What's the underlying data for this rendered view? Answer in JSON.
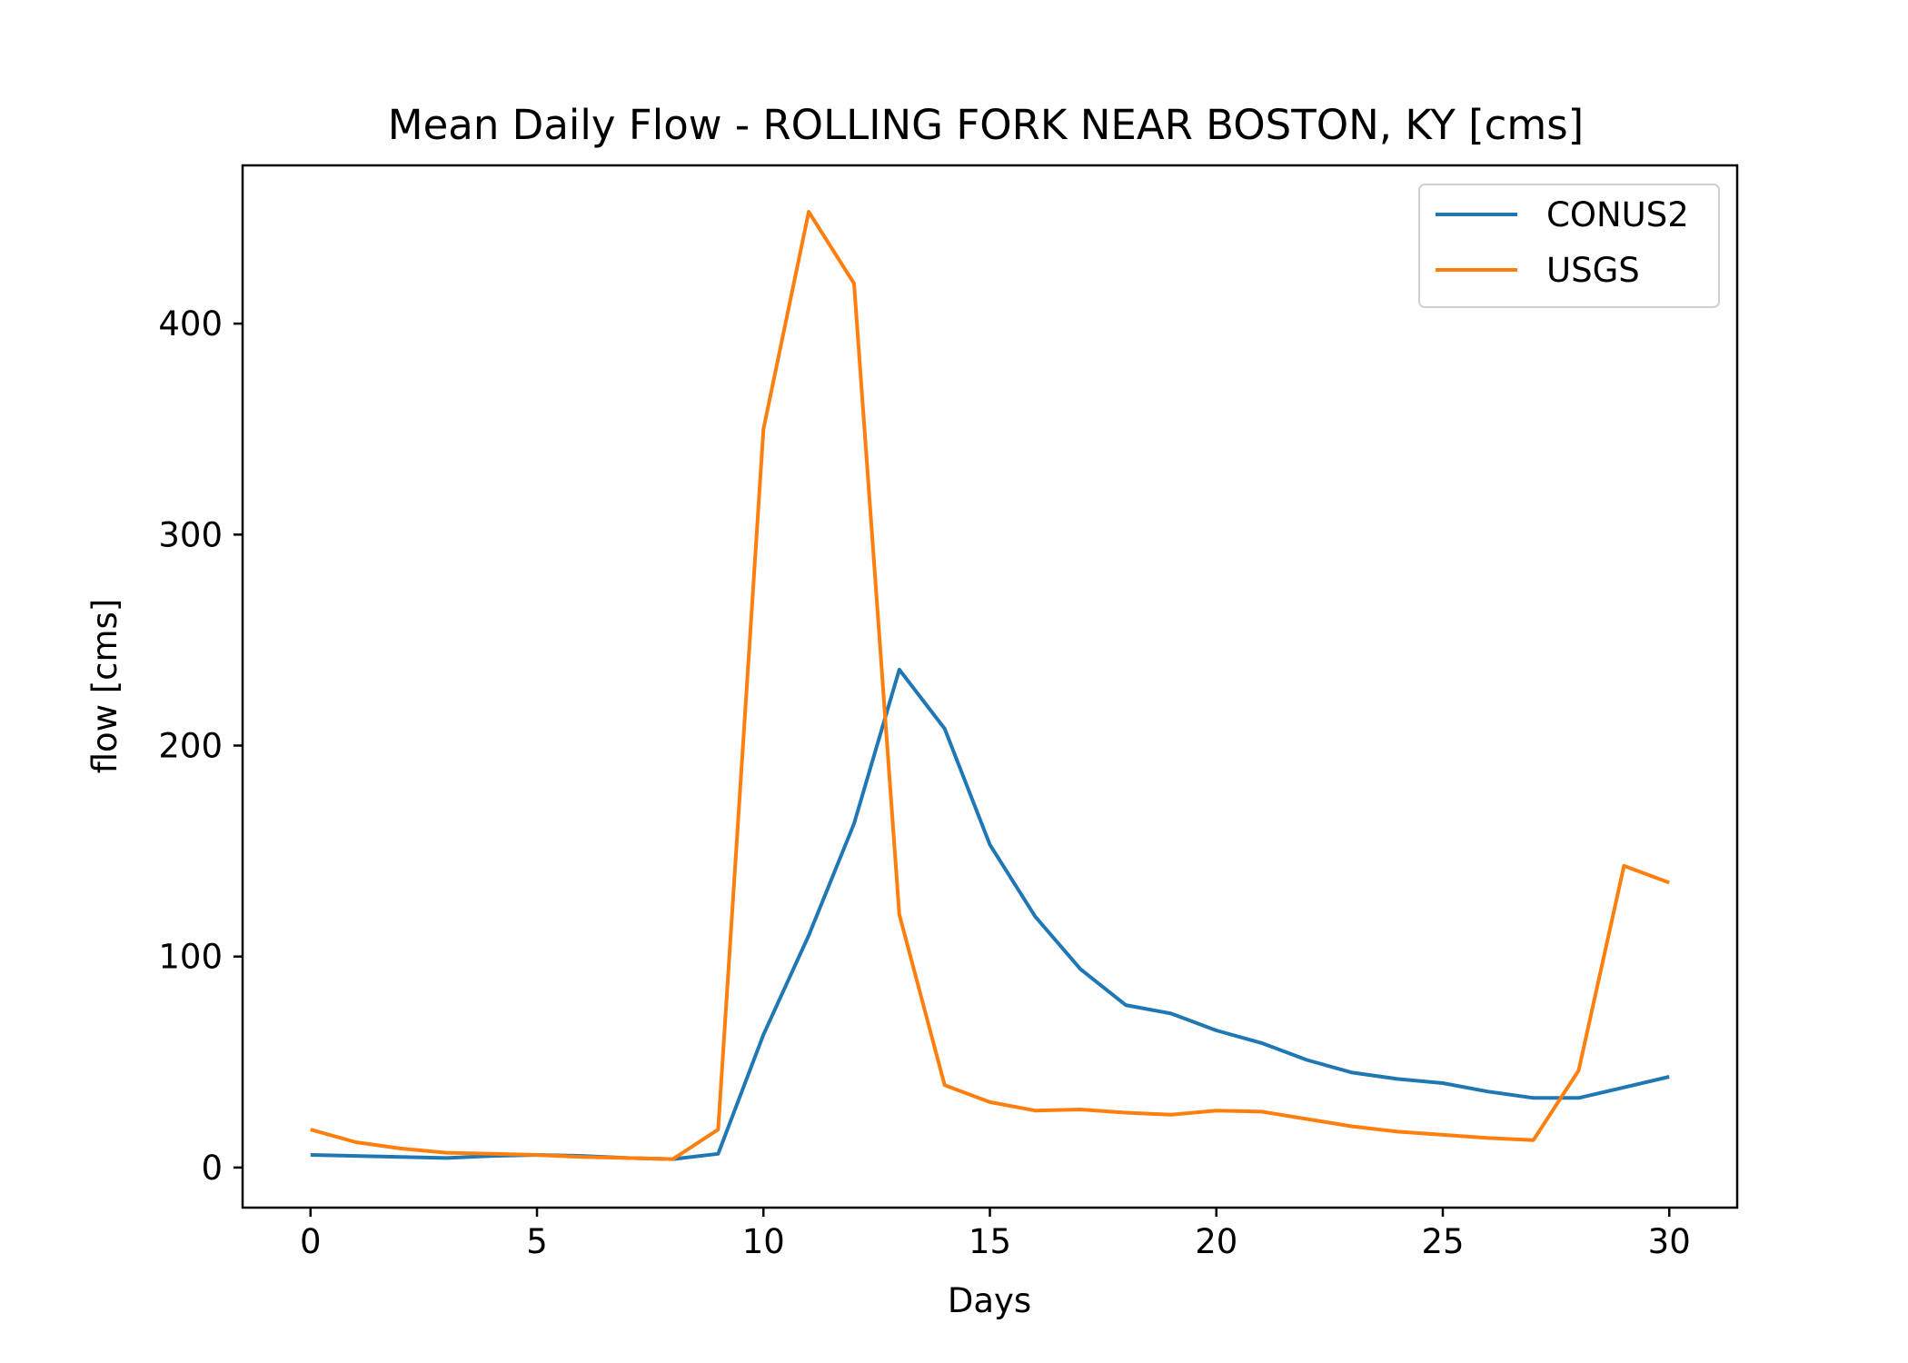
{
  "chart_data": {
    "type": "line",
    "title": "Mean Daily Flow - ROLLING FORK NEAR BOSTON, KY [cms]",
    "xlabel": "Days",
    "ylabel": "flow [cms]",
    "xlim": [
      -1.5,
      31.5
    ],
    "ylim": [
      -19,
      475
    ],
    "xticks": [
      0,
      5,
      10,
      15,
      20,
      25,
      30
    ],
    "yticks": [
      0,
      100,
      200,
      300,
      400
    ],
    "grid": false,
    "legend_position": "top-right",
    "x": [
      0,
      1,
      2,
      3,
      4,
      5,
      6,
      7,
      8,
      9,
      10,
      11,
      12,
      13,
      14,
      15,
      16,
      17,
      18,
      19,
      20,
      21,
      22,
      23,
      24,
      25,
      26,
      27,
      28,
      29,
      30
    ],
    "series": [
      {
        "name": "CONUS2",
        "color": "#1f77b4",
        "values": [
          6,
          5.5,
          5,
          4.5,
          5.5,
          6,
          5.5,
          4.5,
          4,
          6.5,
          63,
          110,
          163,
          236,
          208,
          153,
          119,
          94,
          77,
          73,
          65,
          59,
          51,
          45,
          42,
          40,
          36,
          33,
          33,
          38,
          43
        ]
      },
      {
        "name": "USGS",
        "color": "#ff7f0e",
        "values": [
          18,
          12,
          9,
          7,
          6.5,
          6,
          5,
          4.5,
          4,
          18,
          350,
          453,
          419,
          120,
          39,
          31,
          27,
          27.5,
          26,
          25,
          27,
          26.5,
          23,
          19.5,
          17,
          15.5,
          14,
          13,
          46,
          143,
          135
        ]
      }
    ]
  }
}
